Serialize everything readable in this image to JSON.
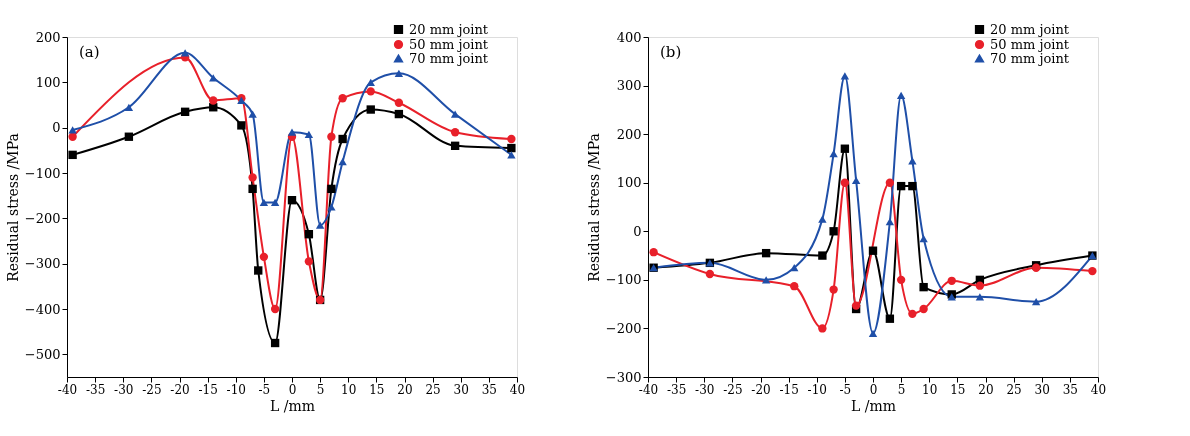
{
  "chart_data": [
    {
      "type": "line",
      "xlabel": "L /mm",
      "ylabel": "Residual stress /MPa",
      "annotations": [
        "(a)"
      ],
      "xlim": [
        -40,
        40
      ],
      "xticks": [
        -40,
        -35,
        -30,
        -25,
        -20,
        -15,
        -10,
        -5,
        0,
        5,
        10,
        15,
        20,
        25,
        30,
        35,
        40
      ],
      "ylim": [
        -550,
        200
      ],
      "yticks": [
        -500,
        -400,
        -300,
        -200,
        -100,
        0,
        100,
        200
      ],
      "grid": false,
      "legend": "top right",
      "line_style": "solid",
      "series": [
        {
          "name": "20 mm joint",
          "color": "#000000",
          "marker": "square",
          "x": [
            -39,
            -29,
            -19,
            -14,
            -9,
            -7,
            -6,
            -3,
            0,
            3,
            5,
            7,
            9,
            14,
            19,
            29,
            39
          ],
          "values": [
            -60,
            -20,
            35,
            45,
            5,
            -135,
            -315,
            -475,
            -160,
            -235,
            -380,
            -135,
            -25,
            40,
            30,
            -40,
            -45
          ]
        },
        {
          "name": "50 mm joint",
          "color": "#e8202a",
          "marker": "circle",
          "x": [
            -39,
            -19,
            -14,
            -9,
            -7,
            -5,
            -3,
            0,
            3,
            5,
            7,
            9,
            14,
            19,
            29,
            39
          ],
          "values": [
            -20,
            155,
            60,
            65,
            -110,
            -285,
            -400,
            -20,
            -295,
            -380,
            -20,
            65,
            80,
            55,
            -10,
            -25
          ]
        },
        {
          "name": "70 mm joint",
          "color": "#1f4fa8",
          "marker": "triangle",
          "x": [
            -39,
            -29,
            -19,
            -14,
            -9,
            -7,
            -5,
            -3,
            0,
            3,
            5,
            7,
            9,
            14,
            19,
            29,
            39
          ],
          "values": [
            -5,
            45,
            165,
            110,
            60,
            30,
            -165,
            -165,
            -10,
            -15,
            -215,
            -175,
            -75,
            100,
            120,
            30,
            -60
          ]
        }
      ]
    },
    {
      "type": "line",
      "xlabel": "L /mm",
      "ylabel": "Residual stress /MPa",
      "annotations": [
        "(b)"
      ],
      "xlim": [
        -40,
        40
      ],
      "xticks": [
        -40,
        -35,
        -30,
        -25,
        -20,
        -15,
        -10,
        -5,
        0,
        5,
        10,
        15,
        20,
        25,
        30,
        35,
        40
      ],
      "ylim": [
        -300,
        400
      ],
      "yticks": [
        -300,
        -200,
        -100,
        0,
        100,
        200,
        300,
        400
      ],
      "grid": false,
      "legend": "top right",
      "line_style": "solid",
      "series": [
        {
          "name": "20 mm joint",
          "color": "#000000",
          "marker": "square",
          "x": [
            -39,
            -29,
            -19,
            -9,
            -7,
            -5,
            -3,
            0,
            3,
            5,
            7,
            9,
            14,
            19,
            29,
            39
          ],
          "values": [
            -75,
            -65,
            -45,
            -50,
            0,
            170,
            -160,
            -40,
            -180,
            93,
            93,
            -115,
            -130,
            -100,
            -70,
            -50
          ]
        },
        {
          "name": "50 mm joint",
          "color": "#e8202a",
          "marker": "circle",
          "x": [
            -39,
            -29,
            -14,
            -9,
            -7,
            -5,
            -3,
            3,
            5,
            7,
            9,
            14,
            19,
            29,
            39
          ],
          "values": [
            -43,
            -88,
            -113,
            -200,
            -120,
            100,
            -153,
            100,
            -100,
            -170,
            -160,
            -102,
            -112,
            -75,
            -82
          ]
        },
        {
          "name": "70 mm joint",
          "color": "#1f4fa8",
          "marker": "triangle",
          "x": [
            -39,
            -29,
            -19,
            -14,
            -9,
            -7,
            -5,
            -3,
            0,
            3,
            5,
            7,
            9,
            14,
            19,
            29,
            39
          ],
          "values": [
            -75,
            -65,
            -100,
            -75,
            25,
            160,
            320,
            105,
            -210,
            20,
            280,
            145,
            -15,
            -135,
            -135,
            -145,
            -50
          ]
        }
      ]
    }
  ]
}
